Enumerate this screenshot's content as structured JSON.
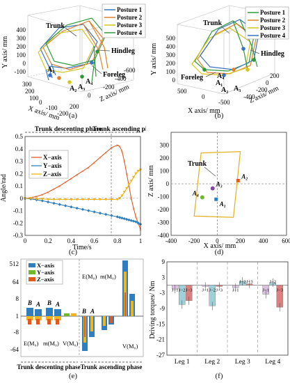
{
  "colors": {
    "posture1": "#3a73c0",
    "posture2": "#e0802a",
    "posture3": "#d6c51c",
    "posture4": "#2f9a3a",
    "xaxis": "#e05a1e",
    "yaxis": "#2f7fc0",
    "zaxis": "#f0b41c"
  },
  "captions": {
    "a": "(a)",
    "b": "(b)",
    "c": "(c)",
    "d": "(d)",
    "e": "(e)",
    "f": "(f)"
  },
  "panel_a": {
    "legend": [
      "Posture 1",
      "Posture 2",
      "Posture 3",
      "Posture 4"
    ],
    "y_label": "Y axis/ mm",
    "x_label": "X axis/ mm",
    "z_label": "Z axis/ mm",
    "y_ticks": [
      "400",
      "300",
      "200",
      "100",
      "0",
      "-100"
    ],
    "x_ticks": [
      "300",
      "200",
      "100",
      "0",
      "-100",
      "-200"
    ],
    "z_ticks": [
      "-600",
      "-400",
      "-200",
      "0",
      "200"
    ],
    "labels": {
      "trunk": "Trunk",
      "hindleg": "Hindleg",
      "foreleg": "Foreleg",
      "a1": "A₁",
      "a2": "A₂",
      "a3": "A₃",
      "a4": "A₄"
    }
  },
  "panel_b": {
    "legend": [
      "Posture 1",
      "Posture 2",
      "Posture 3",
      "Posture 4"
    ],
    "y_label": "Y axis/ mm",
    "x_label": "X axis/ mm",
    "z_label": "Z axis/ mm",
    "y_ticks": [
      "500",
      "400",
      "300",
      "200",
      "100",
      "0"
    ],
    "x_ticks": [
      "500",
      "0",
      "-500"
    ],
    "z_ticks": [
      "200",
      "0",
      "-200",
      "-400"
    ],
    "labels": {
      "trunk": "Trunk",
      "hindleg": "Hindleg",
      "foreleg": "Foreleg",
      "a1": "A₁",
      "a2": "A₂",
      "a3": "A₃",
      "a4": "A₄"
    }
  },
  "chart_data": [
    {
      "type": "line",
      "title": "",
      "xlabel": "Time/s",
      "ylabel": "Angle/rad",
      "xlim": [
        0,
        1
      ],
      "ylim": [
        -0.3,
        0.5
      ],
      "x_ticks": [
        "0",
        "0.2",
        "0.4",
        "0.6",
        "0.8",
        "1"
      ],
      "y_ticks": [
        "0.5",
        "0.4",
        "0.3",
        "0.2",
        "0.1",
        "0",
        "-0.1",
        "-0.2",
        "-0.3"
      ],
      "phases": [
        "Trunk descenting phase",
        "Trunk ascending phase"
      ],
      "legend": [
        "X−axis",
        "Y−axis",
        "Z−axis"
      ],
      "series": [
        {
          "name": "X−axis",
          "x": [
            0,
            0.05,
            0.1,
            0.15,
            0.2,
            0.25,
            0.3,
            0.35,
            0.4,
            0.45,
            0.5,
            0.55,
            0.6,
            0.65,
            0.7,
            0.75,
            0.8,
            0.82,
            0.84,
            0.86,
            0.88,
            0.9,
            0.92,
            0.94,
            0.96,
            0.98,
            1.0
          ],
          "y": [
            0,
            0.005,
            0.015,
            0.03,
            0.05,
            0.075,
            0.1,
            0.13,
            0.16,
            0.19,
            0.22,
            0.25,
            0.29,
            0.33,
            0.37,
            0.41,
            0.43,
            0.42,
            0.38,
            0.3,
            0.2,
            0.1,
            0.0,
            -0.08,
            -0.15,
            -0.2,
            -0.25
          ]
        },
        {
          "name": "Y−axis",
          "x": [
            0,
            0.05,
            0.1,
            0.15,
            0.2,
            0.25,
            0.3,
            0.35,
            0.4,
            0.45,
            0.5,
            0.55,
            0.6,
            0.65,
            0.7,
            0.75,
            0.8,
            0.82,
            0.84,
            0.86,
            0.88,
            0.9,
            0.92,
            0.94,
            0.96,
            0.98,
            1.0
          ],
          "y": [
            0,
            -0.005,
            -0.012,
            -0.02,
            -0.03,
            -0.04,
            -0.05,
            -0.06,
            -0.07,
            -0.08,
            -0.09,
            -0.1,
            -0.11,
            -0.12,
            -0.13,
            -0.14,
            -0.15,
            -0.155,
            -0.16,
            -0.165,
            -0.17,
            -0.175,
            -0.18,
            -0.185,
            -0.19,
            -0.2,
            -0.21
          ]
        },
        {
          "name": "Z−axis",
          "x": [
            0,
            0.05,
            0.1,
            0.15,
            0.2,
            0.25,
            0.3,
            0.35,
            0.4,
            0.45,
            0.5,
            0.55,
            0.6,
            0.65,
            0.7,
            0.75,
            0.8,
            0.82,
            0.84,
            0.86,
            0.88,
            0.9,
            0.92,
            0.94,
            0.96,
            0.98,
            1.0
          ],
          "y": [
            0,
            0,
            -0.005,
            -0.005,
            -0.01,
            -0.01,
            -0.01,
            -0.01,
            -0.01,
            -0.01,
            -0.01,
            -0.01,
            -0.01,
            -0.01,
            -0.01,
            -0.01,
            -0.01,
            0.0,
            0.02,
            0.05,
            0.08,
            0.11,
            0.14,
            0.17,
            0.2,
            0.22,
            0.23
          ]
        }
      ]
    },
    {
      "type": "scatter",
      "title": "",
      "xlabel": "X axis/ mm",
      "ylabel": "Z axis/ mm",
      "xlim": [
        -400,
        600
      ],
      "ylim": [
        -400,
        400
      ],
      "x_ticks": [
        "-400",
        "-200",
        "0",
        "200",
        "400",
        "600"
      ],
      "y_ticks": [
        "300",
        "200",
        "100",
        "0",
        "-100",
        "-200",
        "-300",
        "-400"
      ],
      "annotation": "Trunk",
      "points": [
        {
          "label": "A₁",
          "x": -10,
          "y": -120,
          "color": "#2f7fc0"
        },
        {
          "label": "A₂",
          "x": 180,
          "y": 25,
          "color": "#e05a1e"
        },
        {
          "label": "A₃",
          "x": -40,
          "y": -35,
          "color": "#8a3fb0"
        },
        {
          "label": "A₄",
          "x": -130,
          "y": -105,
          "color": "#6fb82a"
        }
      ]
    },
    {
      "type": "bar",
      "title": "",
      "y_ticks": [
        "512",
        "64",
        "8",
        "1",
        "-8",
        "-64"
      ],
      "legend": [
        "X−axis",
        "Y−axis",
        "Z−axis"
      ],
      "phases": [
        "Trunk descenting phase",
        "Trunk ascending phase"
      ],
      "groups_desc": [
        "E(M₀)",
        "m(M₀)",
        "V(M₀)"
      ],
      "groups_asc": [
        "E(M₀)",
        "m(M₀)",
        "V(M₀)"
      ],
      "bar_labels": [
        "B",
        "A"
      ]
    },
    {
      "type": "bar",
      "title": "",
      "ylabel": "Driving torques/ Nm",
      "ylim": [
        -27,
        9
      ],
      "y_ticks": [
        "9",
        "3",
        "-3",
        "-9",
        "-15",
        "-21",
        "-27"
      ],
      "categories": [
        "Leg 1",
        "Leg 2",
        "Leg 3",
        "Leg 4"
      ],
      "joint_labels": [
        "J−1",
        "J−2",
        "J−3"
      ],
      "series": [
        {
          "name": "J−1",
          "color": "#d9c2de",
          "values": [
            -1.5,
            -0.5,
            -1.0,
            -3.5
          ]
        },
        {
          "name": "J−2",
          "color": "#9fd0d8",
          "values": [
            -7.5,
            -8.0,
            1.5,
            1.0
          ]
        },
        {
          "name": "J−3",
          "color": "#d98080",
          "values": [
            -6.0,
            -0.5,
            0.5,
            -8.5
          ]
        }
      ]
    }
  ]
}
